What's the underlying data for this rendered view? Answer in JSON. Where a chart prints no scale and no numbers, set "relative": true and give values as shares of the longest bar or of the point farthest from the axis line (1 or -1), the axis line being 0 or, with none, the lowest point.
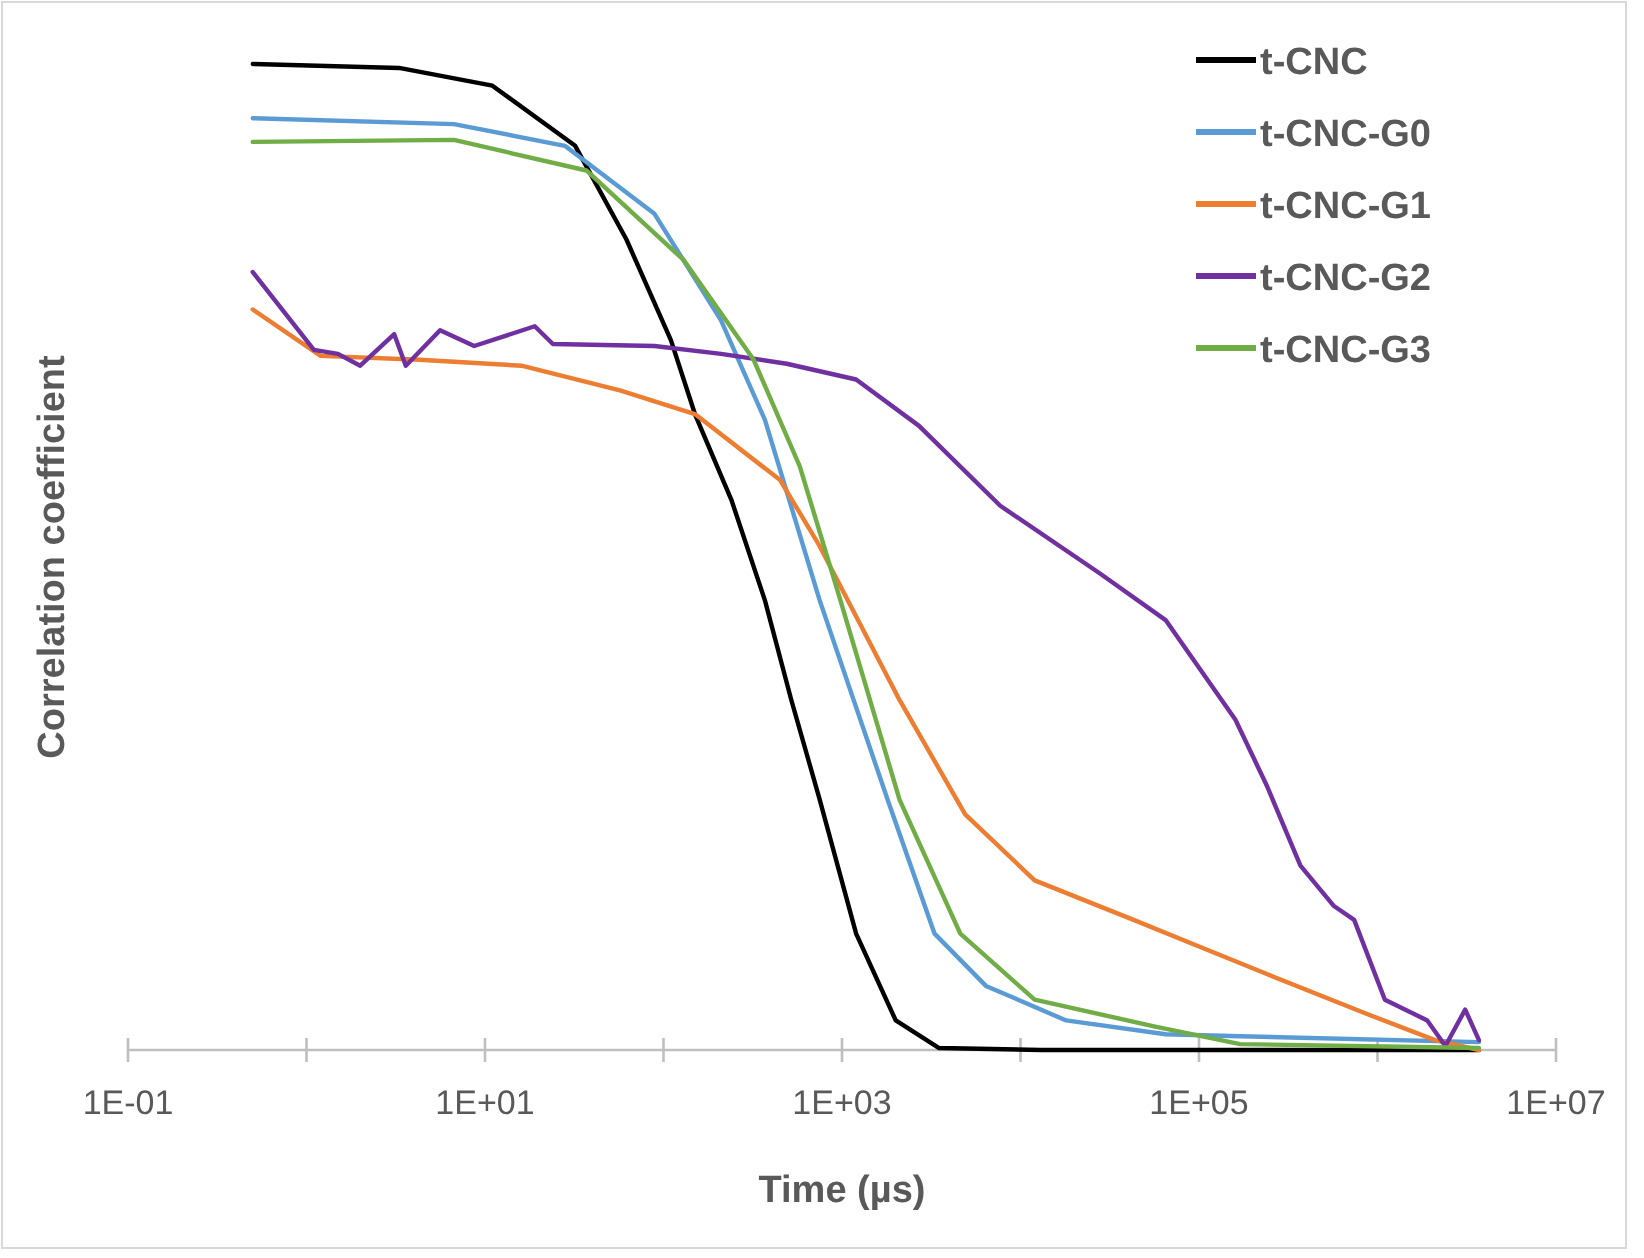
{
  "chart_data": {
    "type": "line",
    "xlabel": "Time (µs)",
    "ylabel": "Correlation coefficient",
    "relative": true,
    "log": "x",
    "xlim": [
      0.1,
      10000000
    ],
    "xticks": [
      {
        "value": 0.1,
        "label": "1E-01"
      },
      {
        "value": 1,
        "label": null
      },
      {
        "value": 10,
        "label": "1E+01"
      },
      {
        "value": 100,
        "label": null
      },
      {
        "value": 1000,
        "label": "1E+03"
      },
      {
        "value": 10000,
        "label": null
      },
      {
        "value": 100000,
        "label": "1E+05"
      },
      {
        "value": 1000000,
        "label": null
      },
      {
        "value": 10000000,
        "label": "1E+07"
      }
    ],
    "legend": "top right",
    "grid": false,
    "marker": "none",
    "line_style": "solid",
    "series": [
      {
        "name": "t-CNC",
        "color": "#000000",
        "x": [
          0.5,
          3.3,
          11,
          32,
          62,
          110,
          150,
          240,
          370,
          520,
          750,
          1200,
          2000,
          3500,
          13000,
          3700000
        ],
        "values": [
          1,
          0.996,
          0.978,
          0.917,
          0.822,
          0.72,
          0.645,
          0.558,
          0.456,
          0.355,
          0.254,
          0.118,
          0.03,
          0.002,
          0,
          0
        ]
      },
      {
        "name": "t-CNC-G0",
        "color": "#5b9bd5",
        "x": [
          0.5,
          6.7,
          28,
          89,
          210,
          370,
          750,
          1800,
          3300,
          6400,
          18000,
          65000,
          170000,
          3700000
        ],
        "values": [
          0.945,
          0.939,
          0.917,
          0.848,
          0.74,
          0.639,
          0.456,
          0.254,
          0.118,
          0.065,
          0.03,
          0.016,
          0.014,
          0.008
        ]
      },
      {
        "name": "t-CNC-G1",
        "color": "#ed7d31",
        "x": [
          0.5,
          1.2,
          4.3,
          16,
          57,
          150,
          450,
          750,
          2100,
          4900,
          12000,
          43000,
          100000,
          240000,
          860000,
          2100000,
          3700000
        ],
        "values": [
          0.751,
          0.704,
          0.7,
          0.694,
          0.669,
          0.645,
          0.578,
          0.511,
          0.355,
          0.239,
          0.172,
          0.132,
          0.105,
          0.077,
          0.037,
          0.01,
          0
        ]
      },
      {
        "name": "t-CNC-G2",
        "color": "#7030a0",
        "x": [
          0.5,
          1.1,
          1.5,
          2,
          3.1,
          3.6,
          5.6,
          8.7,
          19,
          24,
          89,
          210,
          490,
          1200,
          2700,
          7700,
          28000,
          65000,
          160000,
          240000,
          370000,
          570000,
          740000,
          1100000,
          1900000,
          2400000,
          3100000,
          3700000
        ],
        "values": [
          0.789,
          0.71,
          0.706,
          0.694,
          0.726,
          0.694,
          0.73,
          0.714,
          0.734,
          0.716,
          0.714,
          0.706,
          0.696,
          0.68,
          0.633,
          0.552,
          0.483,
          0.436,
          0.335,
          0.268,
          0.187,
          0.146,
          0.132,
          0.051,
          0.03,
          0.004,
          0.041,
          0.01
        ]
      },
      {
        "name": "t-CNC-G3",
        "color": "#70ad47",
        "x": [
          0.5,
          6.7,
          37,
          130,
          320,
          580,
          980,
          2100,
          4600,
          12000,
          56000,
          170000,
          3700000
        ],
        "values": [
          0.921,
          0.923,
          0.892,
          0.801,
          0.7,
          0.592,
          0.456,
          0.254,
          0.118,
          0.051,
          0.024,
          0.006,
          0.002
        ]
      }
    ]
  }
}
